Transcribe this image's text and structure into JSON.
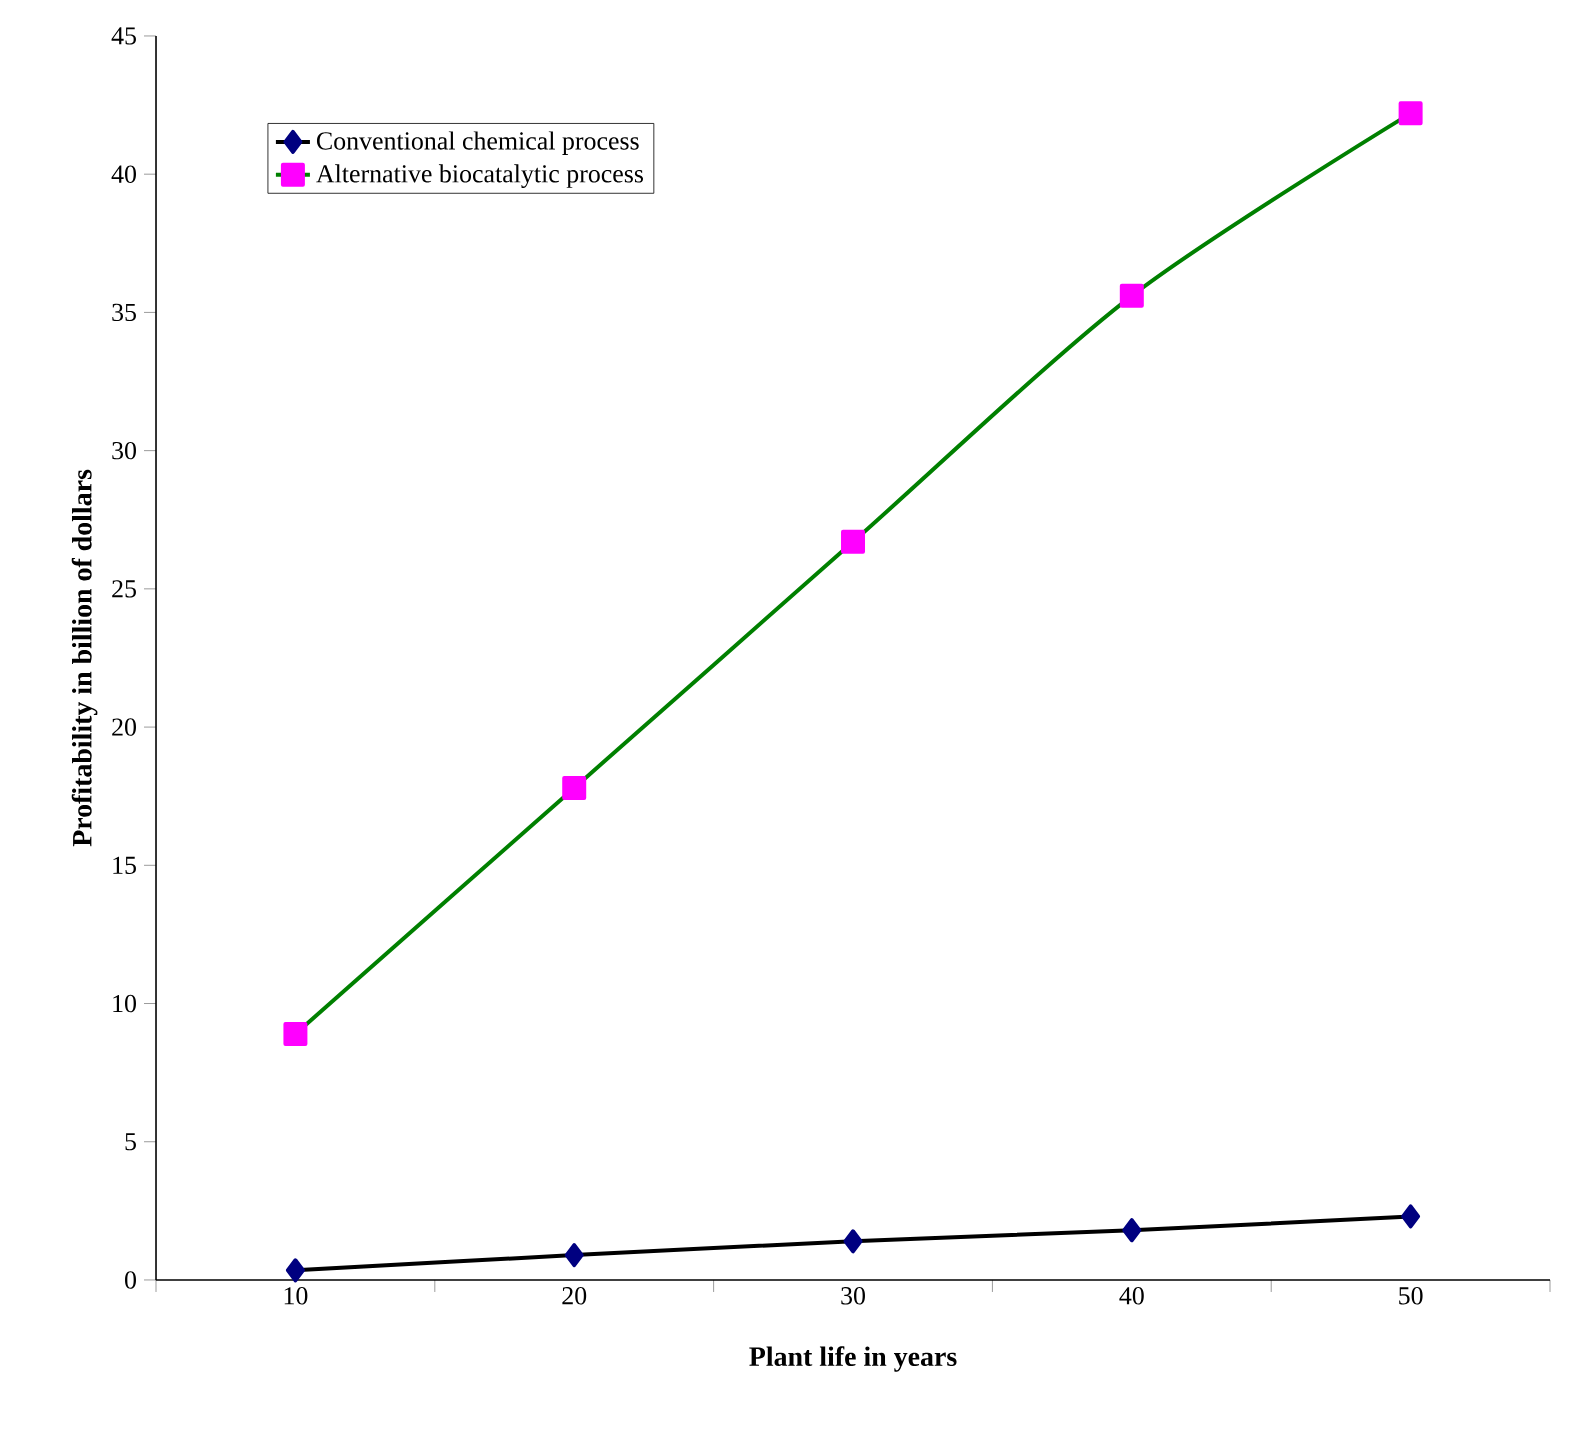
{
  "chart_data": {
    "type": "line",
    "xlabel": "Plant life in years",
    "ylabel": "Profitability in billion of dollars",
    "categories": [
      "10",
      "20",
      "30",
      "40",
      "50"
    ],
    "series": [
      {
        "name": "Conventional chemical process",
        "color": "#000000",
        "colors": [
          "#000080",
          "#000080",
          "#000080",
          "#000080",
          "#000080"
        ],
        "marker": "diamond",
        "values": [
          0.35,
          0.9,
          1.4,
          1.8,
          2.3
        ]
      },
      {
        "name": "Alternative biocatalytic process",
        "color": "#008000",
        "colors": [
          "#ff00ff",
          "#ff00ff",
          "#ff00ff",
          "#ff00ff",
          "#ff00ff"
        ],
        "marker": "square",
        "values": [
          8.9,
          17.8,
          26.7,
          35.6,
          42.2
        ]
      }
    ],
    "ylim": [
      0,
      45
    ],
    "yticks": [
      0,
      5,
      10,
      15,
      20,
      25,
      30,
      35,
      40,
      45
    ],
    "grid": false,
    "legend": "top left",
    "line_style": "solid"
  }
}
